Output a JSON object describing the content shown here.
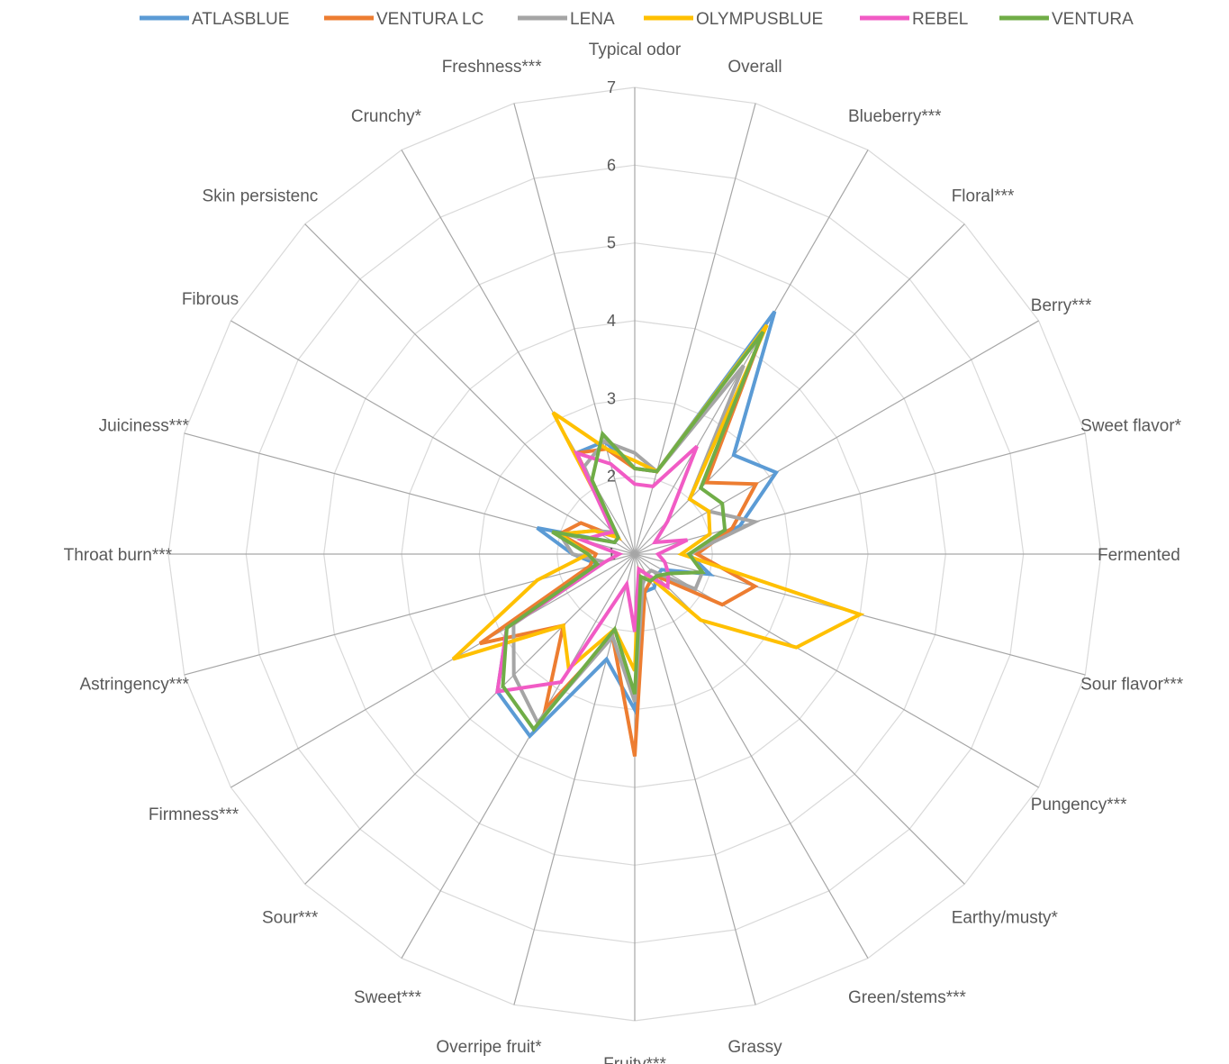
{
  "chart_data": {
    "type": "radar",
    "title": "",
    "axes": [
      "Typical odor",
      "Overall",
      "Blueberry***",
      "Floral***",
      "Berry***",
      "Sweet flavor*",
      "Fermented",
      "Sour flavor***",
      "Pungency***",
      "Earthy/musty*",
      "Green/stems***",
      "Grassy",
      "Fruity***",
      "Overripe fruit*",
      "Sweet***",
      "Sour***",
      "Firmness***",
      "Astringency***",
      "Throat burn***",
      "Juiciness***",
      "Fibrous",
      "Skin persistenc",
      "Crunchy*",
      "Freshness***"
    ],
    "rlim": [
      1,
      7
    ],
    "ticks": [
      1,
      2,
      3,
      4,
      5,
      6,
      7
    ],
    "grid": true,
    "legend_position": "top",
    "series": [
      {
        "name": "ATLASBLUE",
        "color": "#5B9BD5",
        "values": [
          2.1,
          2.1,
          4.6,
          2.8,
          3.1,
          2.4,
          1.7,
          2.0,
          1.4,
          1.4,
          1.5,
          1.5,
          3.0,
          2.4,
          3.7,
          3.5,
          2.9,
          1.5,
          1.8,
          2.3,
          1.3,
          1.3,
          2.5,
          2.5
        ]
      },
      {
        "name": "VENTURA LC",
        "color": "#ED7D31",
        "values": [
          2.1,
          2.1,
          4.3,
          2.3,
          2.8,
          2.3,
          1.8,
          2.6,
          2.3,
          1.4,
          1.4,
          1.5,
          3.6,
          2.1,
          3.3,
          2.3,
          3.3,
          1.6,
          1.5,
          2.0,
          1.8,
          1.3,
          2.5,
          2.4
        ]
      },
      {
        "name": "LENA",
        "color": "#A5A5A5",
        "values": [
          2.3,
          2.1,
          3.8,
          2.0,
          2.1,
          2.6,
          1.7,
          1.9,
          1.9,
          1.3,
          1.3,
          1.4,
          2.9,
          2.1,
          3.5,
          3.2,
          2.8,
          1.4,
          1.8,
          2.0,
          1.6,
          1.4,
          2.3,
          2.5
        ]
      },
      {
        "name": "OLYMPUSBLUE",
        "color": "#FFC000",
        "values": [
          2.2,
          2.1,
          4.4,
          2.0,
          2.1,
          2.0,
          1.6,
          4.0,
          3.4,
          2.2,
          1.3,
          1.2,
          2.5,
          2.0,
          2.7,
          2.3,
          3.7,
          2.3,
          1.6,
          2.0,
          1.6,
          1.3,
          3.1,
          2.4
        ]
      },
      {
        "name": "REBEL",
        "color": "#F15BC5",
        "values": [
          1.9,
          1.9,
          2.6,
          1.6,
          1.3,
          1.7,
          1.3,
          1.4,
          1.5,
          1.6,
          1.3,
          1.2,
          2.0,
          1.4,
          2.9,
          3.5,
          2.9,
          1.4,
          1.2,
          1.7,
          1.5,
          1.4,
          2.5,
          2.2
        ]
      },
      {
        "name": "VENTURA",
        "color": "#70AD47",
        "values": [
          2.1,
          2.1,
          4.3,
          2.2,
          2.3,
          2.2,
          1.7,
          1.9,
          1.5,
          1.4,
          1.4,
          1.3,
          2.8,
          2.0,
          3.6,
          3.4,
          2.9,
          1.5,
          1.6,
          2.1,
          1.3,
          1.3,
          2.1,
          2.6
        ]
      }
    ]
  }
}
